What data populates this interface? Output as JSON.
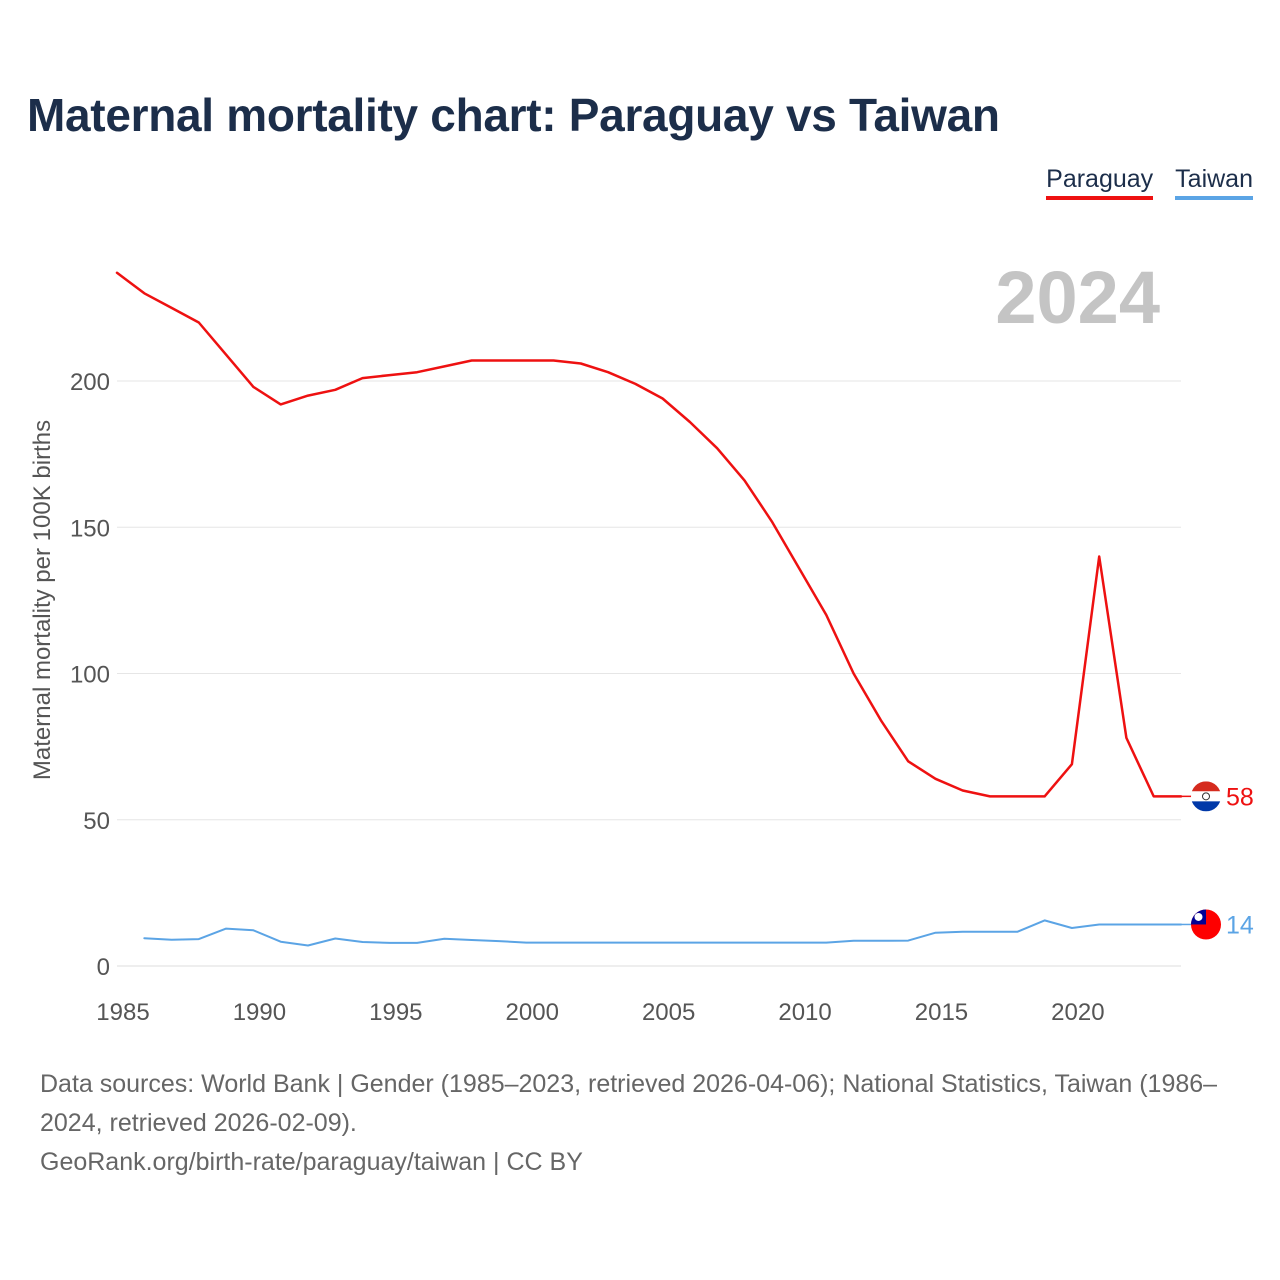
{
  "title": "Maternal mortality chart: Paraguay vs Taiwan",
  "legend": [
    {
      "name": "Paraguay",
      "color": "#ee1111"
    },
    {
      "name": "Taiwan",
      "color": "#5ba4e5"
    }
  ],
  "year_label": "2024",
  "source": {
    "line1": "Data sources: World Bank | Gender (1985–2023, retrieved 2026-04-06); National Statistics, Taiwan (1986–2024, retrieved 2026-02-09).",
    "line2": "GeoRank.org/birth-rate/paraguay/taiwan | CC BY"
  },
  "chart_data": {
    "type": "line",
    "title": "Maternal mortality chart: Paraguay vs Taiwan",
    "xlabel": "",
    "ylabel": "Maternal mortality per 100K births",
    "xlim": [
      1985,
      2024
    ],
    "ylim": [
      0,
      230
    ],
    "x_ticks": [
      1985,
      1990,
      1995,
      2000,
      2005,
      2010,
      2015,
      2020
    ],
    "y_ticks": [
      0,
      50,
      100,
      150,
      200
    ],
    "grid": true,
    "legend_position": "top-right",
    "series": [
      {
        "name": "Paraguay",
        "color": "#ee1111",
        "end_label": "58",
        "x": [
          1985,
          1986,
          1987,
          1988,
          1989,
          1990,
          1991,
          1992,
          1993,
          1994,
          1995,
          1996,
          1997,
          1998,
          1999,
          2000,
          2001,
          2002,
          2003,
          2004,
          2005,
          2006,
          2007,
          2008,
          2009,
          2010,
          2011,
          2012,
          2013,
          2014,
          2015,
          2016,
          2017,
          2018,
          2019,
          2020,
          2021,
          2022,
          2023,
          2024
        ],
        "values": [
          237,
          230,
          225,
          220,
          209,
          198,
          192,
          195,
          197,
          201,
          202,
          203,
          205,
          207,
          207,
          207,
          207,
          206,
          203,
          199,
          194,
          186,
          177,
          166,
          152,
          136,
          120,
          100,
          84,
          70,
          64,
          60,
          58,
          58,
          58,
          69,
          140,
          78,
          58,
          58
        ]
      },
      {
        "name": "Taiwan",
        "color": "#5ba4e5",
        "end_label": "14",
        "x": [
          1986,
          1987,
          1988,
          1989,
          1990,
          1991,
          1992,
          1993,
          1994,
          1995,
          1996,
          1997,
          1998,
          1999,
          2000,
          2001,
          2002,
          2003,
          2004,
          2005,
          2006,
          2007,
          2008,
          2009,
          2010,
          2011,
          2012,
          2013,
          2014,
          2015,
          2016,
          2017,
          2018,
          2019,
          2020,
          2021,
          2022,
          2023,
          2024
        ],
        "values": [
          9.5,
          9,
          9.2,
          12.8,
          12.2,
          8.3,
          7,
          9.4,
          8.2,
          7.9,
          7.9,
          9.3,
          8.9,
          8.5,
          8,
          8,
          8,
          8,
          8,
          8,
          8,
          8,
          8,
          8,
          8,
          8,
          8.6,
          8.6,
          8.7,
          11.4,
          11.7,
          11.7,
          11.7,
          15.6,
          13,
          14.2,
          14.2,
          14.2,
          14.2
        ]
      }
    ]
  }
}
